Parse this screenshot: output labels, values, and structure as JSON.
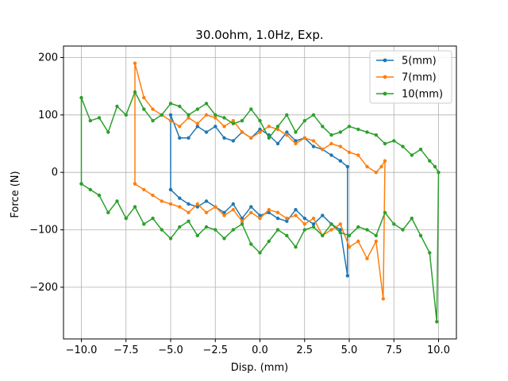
{
  "chart_data": {
    "type": "line",
    "title": "30.0ohm, 1.0Hz, Exp.",
    "xlabel": "Disp. (mm)",
    "ylabel": "Force (N)",
    "xlim": [
      -11.0,
      11.0
    ],
    "ylim": [
      -290,
      220
    ],
    "xticks": [
      -10.0,
      -7.5,
      -5.0,
      -2.5,
      0.0,
      2.5,
      5.0,
      7.5,
      10.0
    ],
    "xtick_labels": [
      "−10.0",
      "−7.5",
      "−5.0",
      "−2.5",
      "0.0",
      "2.5",
      "5.0",
      "7.5",
      "10.0"
    ],
    "yticks": [
      -200,
      -100,
      0,
      100,
      200
    ],
    "ytick_labels": [
      "−200",
      "−100",
      "0",
      "100",
      "200"
    ],
    "grid": true,
    "legend_position": "upper right",
    "series": [
      {
        "name": "5(mm)",
        "color": "#1f77b4",
        "x": [
          -5.0,
          -4.5,
          -4.0,
          -3.5,
          -3.0,
          -2.5,
          -2.0,
          -1.5,
          -1.0,
          -0.5,
          0.0,
          0.5,
          1.0,
          1.5,
          2.0,
          2.5,
          3.0,
          3.5,
          4.0,
          4.5,
          4.9,
          4.9,
          4.5,
          4.0,
          3.5,
          3.0,
          2.5,
          2.0,
          1.5,
          1.0,
          0.5,
          0.0,
          -0.5,
          -1.0,
          -1.5,
          -2.0,
          -2.5,
          -3.0,
          -3.5,
          -4.0,
          -4.5,
          -5.0,
          -5.0
        ],
        "y": [
          -30,
          -45,
          -55,
          -60,
          -50,
          -60,
          -70,
          -55,
          -80,
          -60,
          -75,
          -70,
          -80,
          -85,
          -65,
          -80,
          -90,
          -75,
          -90,
          -100,
          -180,
          10,
          20,
          30,
          40,
          45,
          60,
          55,
          70,
          50,
          65,
          75,
          60,
          70,
          55,
          60,
          80,
          70,
          80,
          60,
          60,
          100,
          -30
        ]
      },
      {
        "name": "7(mm)",
        "color": "#ff7f0e",
        "x": [
          -7.0,
          -6.5,
          -6.0,
          -5.5,
          -5.0,
          -4.5,
          -4.0,
          -3.5,
          -3.0,
          -2.5,
          -2.0,
          -1.5,
          -1.0,
          -0.5,
          0.0,
          0.5,
          1.0,
          1.5,
          2.0,
          2.5,
          3.0,
          3.5,
          4.0,
          4.5,
          5.0,
          5.5,
          6.0,
          6.5,
          6.9,
          7.0,
          6.8,
          6.5,
          6.0,
          5.5,
          5.0,
          4.5,
          4.0,
          3.5,
          3.0,
          2.5,
          2.0,
          1.5,
          1.0,
          0.5,
          0.0,
          -0.5,
          -1.0,
          -1.5,
          -2.0,
          -2.5,
          -3.0,
          -3.5,
          -4.0,
          -4.5,
          -5.0,
          -5.5,
          -6.0,
          -6.5,
          -7.0,
          -7.0
        ],
        "y": [
          -20,
          -30,
          -40,
          -50,
          -55,
          -60,
          -70,
          -55,
          -70,
          -60,
          -75,
          -65,
          -85,
          -70,
          -80,
          -65,
          -70,
          -80,
          -75,
          -90,
          -80,
          -110,
          -100,
          -90,
          -130,
          -120,
          -150,
          -120,
          -220,
          20,
          10,
          0,
          10,
          30,
          35,
          45,
          50,
          40,
          55,
          60,
          50,
          65,
          75,
          80,
          70,
          60,
          70,
          90,
          80,
          95,
          100,
          85,
          95,
          80,
          90,
          100,
          110,
          130,
          190,
          -20
        ]
      },
      {
        "name": "10(mm)",
        "color": "#2ca02c",
        "x": [
          -10.0,
          -9.5,
          -9.0,
          -8.5,
          -8.0,
          -7.5,
          -7.0,
          -6.5,
          -6.0,
          -5.5,
          -5.0,
          -4.5,
          -4.0,
          -3.5,
          -3.0,
          -2.5,
          -2.0,
          -1.5,
          -1.0,
          -0.5,
          0.0,
          0.5,
          1.0,
          1.5,
          2.0,
          2.5,
          3.0,
          3.5,
          4.0,
          4.5,
          5.0,
          5.5,
          6.0,
          6.5,
          7.0,
          7.5,
          8.0,
          8.5,
          9.0,
          9.5,
          9.9,
          10.0,
          9.8,
          9.5,
          9.0,
          8.5,
          8.0,
          7.5,
          7.0,
          6.5,
          6.0,
          5.5,
          5.0,
          4.5,
          4.0,
          3.5,
          3.0,
          2.5,
          2.0,
          1.5,
          1.0,
          0.5,
          0.0,
          -0.5,
          -1.0,
          -1.5,
          -2.0,
          -2.5,
          -3.0,
          -3.5,
          -4.0,
          -4.5,
          -5.0,
          -5.5,
          -6.0,
          -6.5,
          -7.0,
          -7.5,
          -8.0,
          -8.5,
          -9.0,
          -9.5,
          -10.0,
          -10.0
        ],
        "y": [
          -20,
          -30,
          -40,
          -70,
          -50,
          -80,
          -60,
          -90,
          -80,
          -100,
          -115,
          -95,
          -85,
          -110,
          -95,
          -100,
          -115,
          -100,
          -90,
          -125,
          -140,
          -120,
          -100,
          -110,
          -130,
          -100,
          -95,
          -110,
          -90,
          -105,
          -110,
          -95,
          -100,
          -110,
          -70,
          -90,
          -100,
          -80,
          -110,
          -140,
          -260,
          0,
          10,
          20,
          40,
          30,
          45,
          55,
          50,
          65,
          70,
          75,
          80,
          70,
          65,
          80,
          100,
          90,
          70,
          100,
          80,
          60,
          90,
          110,
          90,
          85,
          95,
          100,
          120,
          110,
          100,
          115,
          120,
          100,
          90,
          110,
          140,
          100,
          115,
          70,
          95,
          90,
          130,
          -20
        ]
      }
    ]
  }
}
